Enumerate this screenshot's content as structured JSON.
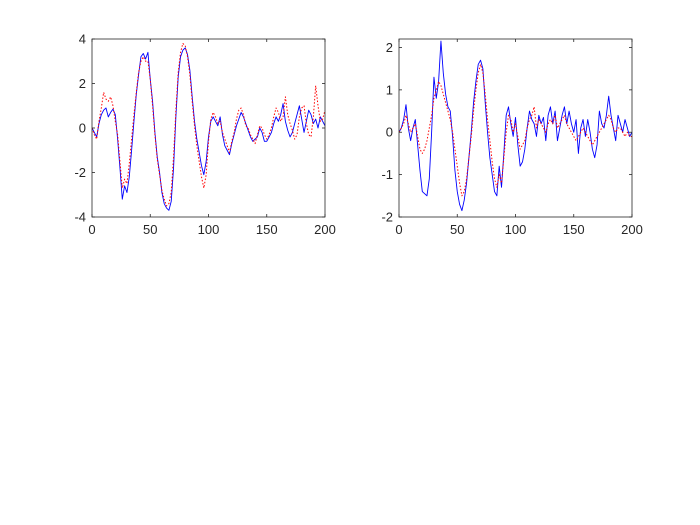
{
  "chart_data": [
    {
      "type": "line",
      "xlim": [
        0,
        200
      ],
      "ylim": [
        -4,
        4
      ],
      "x_ticks": [
        0,
        50,
        100,
        150,
        200
      ],
      "y_ticks": [
        -4,
        -2,
        0,
        2,
        4
      ],
      "x_tick_labels": [
        "0",
        "50",
        "100",
        "150",
        "200"
      ],
      "y_tick_labels": [
        "-4",
        "-2",
        "0",
        "2",
        "4"
      ],
      "grid": false,
      "box": true,
      "series": [
        {
          "style": "solid",
          "color": "#0000ff",
          "x": [
            0,
            2,
            4,
            6,
            8,
            10,
            12,
            14,
            16,
            18,
            20,
            22,
            24,
            26,
            28,
            30,
            32,
            34,
            36,
            38,
            40,
            42,
            44,
            46,
            48,
            50,
            52,
            54,
            56,
            58,
            60,
            62,
            64,
            66,
            68,
            70,
            72,
            74,
            76,
            78,
            80,
            82,
            84,
            86,
            88,
            90,
            92,
            94,
            96,
            98,
            100,
            102,
            104,
            106,
            108,
            110,
            112,
            114,
            116,
            118,
            120,
            122,
            124,
            126,
            128,
            130,
            132,
            134,
            136,
            138,
            140,
            142,
            144,
            146,
            148,
            150,
            152,
            154,
            156,
            158,
            160,
            162,
            164,
            166,
            168,
            170,
            172,
            174,
            176,
            178,
            180,
            182,
            184,
            186,
            188,
            190,
            192,
            194,
            196,
            198,
            200
          ],
          "y": [
            0.0,
            -0.2,
            -0.4,
            0.2,
            0.6,
            0.8,
            0.9,
            0.5,
            0.7,
            0.85,
            0.6,
            -0.5,
            -1.8,
            -3.2,
            -2.6,
            -2.9,
            -2.2,
            -1.0,
            0.3,
            1.5,
            2.4,
            3.2,
            3.35,
            3.1,
            3.4,
            2.2,
            1.2,
            -0.2,
            -1.3,
            -2.0,
            -2.9,
            -3.4,
            -3.6,
            -3.7,
            -3.3,
            -1.8,
            0.5,
            2.3,
            3.2,
            3.5,
            3.6,
            3.3,
            2.6,
            1.4,
            0.3,
            -0.5,
            -1.1,
            -1.7,
            -2.1,
            -1.5,
            -0.4,
            0.3,
            0.5,
            0.3,
            0.1,
            0.5,
            -0.3,
            -0.8,
            -1.0,
            -1.2,
            -0.7,
            -0.3,
            0.1,
            0.4,
            0.7,
            0.5,
            0.2,
            -0.1,
            -0.4,
            -0.6,
            -0.5,
            -0.4,
            0.0,
            -0.2,
            -0.6,
            -0.6,
            -0.4,
            -0.2,
            0.2,
            0.5,
            0.3,
            0.6,
            1.1,
            0.3,
            -0.1,
            -0.4,
            -0.2,
            0.2,
            0.6,
            1.0,
            0.4,
            -0.2,
            0.3,
            0.8,
            0.6,
            0.2,
            0.4,
            0.0,
            0.5,
            0.3,
            0.1
          ]
        },
        {
          "style": "dotted",
          "color": "#ff0000",
          "x": [
            0,
            2,
            4,
            6,
            8,
            10,
            12,
            14,
            16,
            18,
            20,
            22,
            24,
            26,
            28,
            30,
            32,
            34,
            36,
            38,
            40,
            42,
            44,
            46,
            48,
            50,
            52,
            54,
            56,
            58,
            60,
            62,
            64,
            66,
            68,
            70,
            72,
            74,
            76,
            78,
            80,
            82,
            84,
            86,
            88,
            90,
            92,
            94,
            96,
            98,
            100,
            102,
            104,
            106,
            108,
            110,
            112,
            114,
            116,
            118,
            120,
            122,
            124,
            126,
            128,
            130,
            132,
            134,
            136,
            138,
            140,
            142,
            144,
            146,
            148,
            150,
            152,
            154,
            156,
            158,
            160,
            162,
            164,
            166,
            168,
            170,
            172,
            174,
            176,
            178,
            180,
            182,
            184,
            186,
            188,
            190,
            192,
            194,
            196,
            198,
            200
          ],
          "y": [
            0.0,
            -0.3,
            -0.5,
            0.3,
            0.9,
            1.6,
            1.3,
            1.2,
            1.4,
            1.0,
            0.3,
            -0.3,
            -1.5,
            -2.7,
            -2.3,
            -2.5,
            -1.6,
            -0.5,
            0.6,
            1.6,
            2.5,
            3.0,
            3.2,
            3.0,
            3.0,
            2.2,
            1.0,
            -0.3,
            -1.4,
            -2.1,
            -2.8,
            -3.2,
            -3.5,
            -3.4,
            -2.9,
            -1.3,
            0.8,
            2.5,
            3.4,
            3.8,
            3.7,
            3.2,
            2.4,
            1.2,
            0.1,
            -0.8,
            -1.5,
            -2.2,
            -2.7,
            -2.1,
            -0.6,
            0.4,
            0.7,
            0.5,
            0.2,
            0.3,
            -0.2,
            -0.5,
            -0.8,
            -1.1,
            -0.6,
            -0.2,
            0.4,
            0.8,
            0.9,
            0.6,
            0.1,
            0.0,
            -0.3,
            -0.5,
            -0.7,
            -0.3,
            0.1,
            0.0,
            -0.3,
            -0.5,
            -0.3,
            0.0,
            0.5,
            0.9,
            0.7,
            0.3,
            0.5,
            1.4,
            0.6,
            0.2,
            -0.1,
            -0.5,
            -0.3,
            0.5,
            0.9,
            1.0,
            0.2,
            -0.3,
            -0.4,
            0.5,
            1.9,
            1.0,
            0.3,
            0.4,
            0.8
          ]
        }
      ]
    },
    {
      "type": "line",
      "xlim": [
        0,
        200
      ],
      "ylim": [
        -2,
        2.2
      ],
      "x_ticks": [
        0,
        50,
        100,
        150,
        200
      ],
      "y_ticks": [
        -2,
        -1,
        0,
        1,
        2
      ],
      "x_tick_labels": [
        "0",
        "50",
        "100",
        "150",
        "200"
      ],
      "y_tick_labels": [
        "-2",
        "-1",
        "0",
        "1",
        "2"
      ],
      "grid": false,
      "box": true,
      "series": [
        {
          "style": "solid",
          "color": "#0000ff",
          "x": [
            0,
            2,
            4,
            6,
            8,
            10,
            12,
            14,
            16,
            18,
            20,
            22,
            24,
            26,
            28,
            30,
            32,
            34,
            36,
            38,
            40,
            42,
            44,
            46,
            48,
            50,
            52,
            54,
            56,
            58,
            60,
            62,
            64,
            66,
            68,
            70,
            72,
            74,
            76,
            78,
            80,
            82,
            84,
            86,
            88,
            90,
            92,
            94,
            96,
            98,
            100,
            102,
            104,
            106,
            108,
            110,
            112,
            114,
            116,
            118,
            120,
            122,
            124,
            126,
            128,
            130,
            132,
            134,
            136,
            138,
            140,
            142,
            144,
            146,
            148,
            150,
            152,
            154,
            156,
            158,
            160,
            162,
            164,
            166,
            168,
            170,
            172,
            174,
            176,
            178,
            180,
            182,
            184,
            186,
            188,
            190,
            192,
            194,
            196,
            198,
            200
          ],
          "y": [
            0.0,
            0.1,
            0.3,
            0.65,
            0.1,
            -0.2,
            0.1,
            0.3,
            -0.3,
            -0.9,
            -1.4,
            -1.45,
            -1.5,
            -1.1,
            0.0,
            1.3,
            0.8,
            1.2,
            2.15,
            1.4,
            0.9,
            0.6,
            0.5,
            -0.1,
            -0.9,
            -1.4,
            -1.7,
            -1.85,
            -1.6,
            -1.2,
            -0.6,
            0.0,
            0.7,
            1.2,
            1.6,
            1.7,
            1.5,
            0.7,
            0.0,
            -0.6,
            -1.0,
            -1.4,
            -1.5,
            -0.8,
            -1.3,
            -0.5,
            0.4,
            0.6,
            0.2,
            -0.1,
            0.35,
            -0.3,
            -0.8,
            -0.7,
            -0.4,
            0.1,
            0.5,
            0.3,
            0.2,
            -0.1,
            0.4,
            0.2,
            0.35,
            -0.2,
            0.4,
            0.6,
            0.2,
            0.5,
            -0.2,
            0.1,
            0.4,
            0.6,
            0.2,
            0.5,
            0.2,
            0.0,
            0.3,
            -0.5,
            0.1,
            0.3,
            -0.1,
            0.3,
            0.0,
            -0.4,
            -0.6,
            -0.3,
            0.5,
            0.2,
            0.1,
            0.4,
            0.85,
            0.4,
            0.1,
            -0.2,
            0.4,
            0.2,
            0.0,
            0.3,
            0.1,
            -0.1,
            0.0
          ]
        },
        {
          "style": "dotted",
          "color": "#ff0000",
          "x": [
            0,
            2,
            4,
            6,
            8,
            10,
            12,
            14,
            16,
            18,
            20,
            22,
            24,
            26,
            28,
            30,
            32,
            34,
            36,
            38,
            40,
            42,
            44,
            46,
            48,
            50,
            52,
            54,
            56,
            58,
            60,
            62,
            64,
            66,
            68,
            70,
            72,
            74,
            76,
            78,
            80,
            82,
            84,
            86,
            88,
            90,
            92,
            94,
            96,
            98,
            100,
            102,
            104,
            106,
            108,
            110,
            112,
            114,
            116,
            118,
            120,
            122,
            124,
            126,
            128,
            130,
            132,
            134,
            136,
            138,
            140,
            142,
            144,
            146,
            148,
            150,
            152,
            154,
            156,
            158,
            160,
            162,
            164,
            166,
            168,
            170,
            172,
            174,
            176,
            178,
            180,
            182,
            184,
            186,
            188,
            190,
            192,
            194,
            196,
            198,
            200
          ],
          "y": [
            0.0,
            0.1,
            0.2,
            0.4,
            0.2,
            0.0,
            0.1,
            0.2,
            -0.1,
            -0.4,
            -0.5,
            -0.4,
            -0.2,
            0.1,
            0.4,
            0.8,
            1.0,
            1.2,
            1.1,
            0.9,
            0.7,
            0.5,
            0.3,
            0.0,
            -0.4,
            -0.8,
            -1.2,
            -1.5,
            -1.4,
            -1.1,
            -0.6,
            -0.1,
            0.5,
            1.0,
            1.4,
            1.6,
            1.4,
            0.9,
            0.3,
            -0.2,
            -0.7,
            -1.1,
            -1.3,
            -1.0,
            -1.2,
            -0.6,
            0.0,
            0.4,
            0.3,
            0.0,
            0.2,
            -0.1,
            -0.4,
            -0.3,
            -0.2,
            0.1,
            0.3,
            0.4,
            0.6,
            0.1,
            0.3,
            0.2,
            0.1,
            0.0,
            0.2,
            0.3,
            0.2,
            0.4,
            0.1,
            0.2,
            0.3,
            0.4,
            0.2,
            0.1,
            0.0,
            -0.1,
            -0.2,
            -0.1,
            0.0,
            0.1,
            0.0,
            -0.1,
            -0.2,
            -0.3,
            -0.2,
            -0.1,
            0.0,
            0.1,
            0.2,
            0.3,
            0.4,
            0.3,
            0.1,
            0.0,
            0.1,
            0.1,
            0.0,
            -0.1,
            0.0,
            -0.1,
            -0.1
          ]
        }
      ]
    }
  ]
}
